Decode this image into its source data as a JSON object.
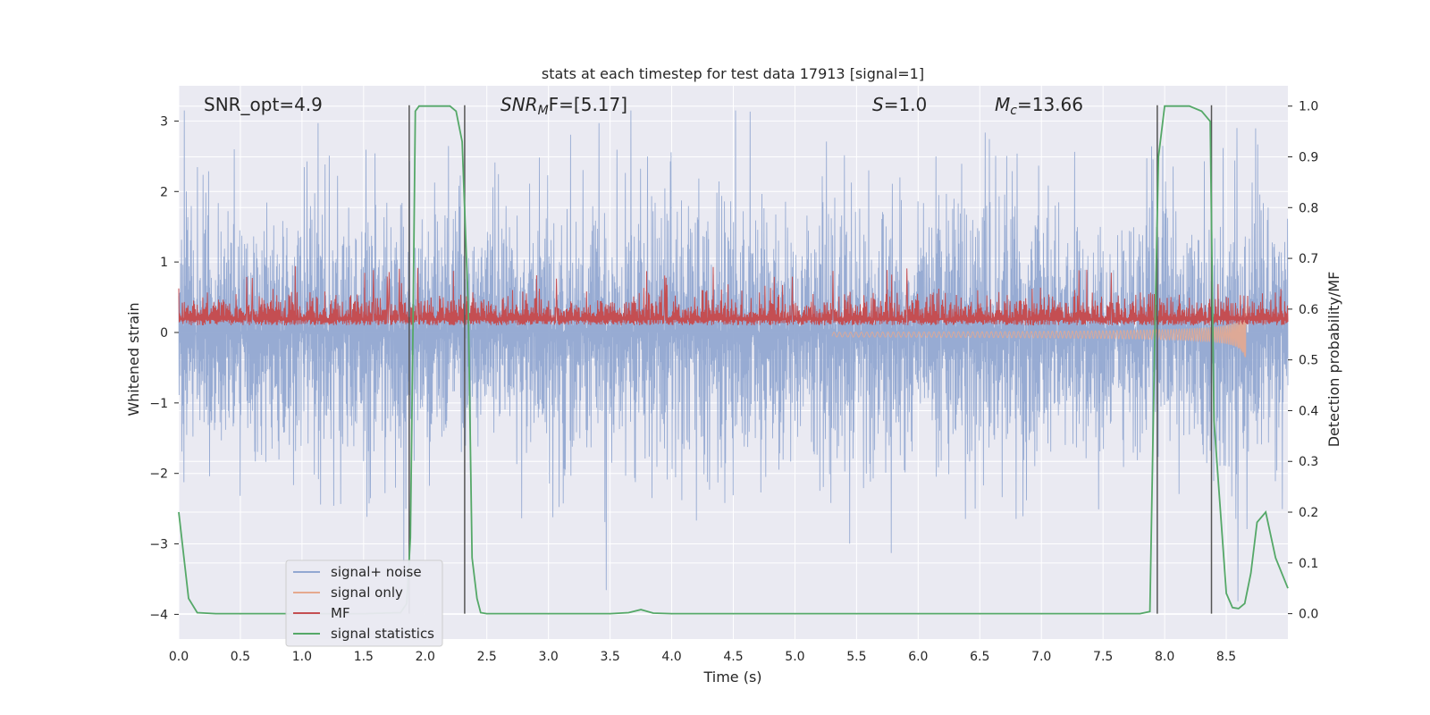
{
  "chart_data": {
    "type": "line",
    "title": "stats at each timestep for test data 17913 [signal=1]",
    "xlabel": "Time (s)",
    "ylabel": "Whitened strain",
    "ylabel_right": "Detection probability/MF",
    "xlim": [
      0.0,
      9.0
    ],
    "ylim": [
      -4.35,
      3.5
    ],
    "ylim_right": [
      -0.05,
      1.04
    ],
    "x_ticks": [
      "0.0",
      "0.5",
      "1.0",
      "1.5",
      "2.0",
      "2.5",
      "3.0",
      "3.5",
      "4.0",
      "4.5",
      "5.0",
      "5.5",
      "6.0",
      "6.5",
      "7.0",
      "7.5",
      "8.0",
      "8.5"
    ],
    "y_ticks": [
      "3",
      "2",
      "1",
      "0",
      "−1",
      "−2",
      "−3",
      "−4"
    ],
    "y_right_ticks": [
      "1.0",
      "0.9",
      "0.8",
      "0.7",
      "0.6",
      "0.5",
      "0.4",
      "0.3",
      "0.2",
      "0.1",
      "0.0"
    ],
    "grid": true,
    "legend_position": "lower-left",
    "annotations": {
      "snr_opt": "SNR_opt=4.9",
      "snr_mf_prefix": "SNR",
      "snr_mf_sub": "M",
      "snr_mf_suffix": "F=[5.17]",
      "s_var": "S",
      "s_value": "=1.0",
      "mc_var": "M",
      "mc_sub": "c",
      "mc_value": "=13.66"
    },
    "series": [
      {
        "name": "signal+ noise",
        "color": "#92a8d1",
        "description": "whitened noisy strain, roughly -3 to 3"
      },
      {
        "name": "signal only",
        "color": "#e6a98f",
        "description": "chirp signal, grows near merger at ~8.65 s"
      },
      {
        "name": "MF",
        "color": "#c44e52",
        "description": "matched filter output, around 0.2-0.6"
      },
      {
        "name": "signal statistics",
        "color": "#55a868",
        "x": [
          0.0,
          0.08,
          0.15,
          0.3,
          0.5,
          1.0,
          1.5,
          1.8,
          1.85,
          1.88,
          1.9,
          1.92,
          1.95,
          2.0,
          2.1,
          2.2,
          2.25,
          2.3,
          2.35,
          2.38,
          2.42,
          2.45,
          2.5,
          3.0,
          3.5,
          3.65,
          3.75,
          3.85,
          4.0,
          5.0,
          6.0,
          7.0,
          7.5,
          7.8,
          7.88,
          7.92,
          7.95,
          8.0,
          8.1,
          8.2,
          8.3,
          8.37,
          8.4,
          8.5,
          8.55,
          8.6,
          8.65,
          8.7,
          8.75,
          8.82,
          8.9,
          9.0
        ],
        "y": [
          0.2,
          0.03,
          0.002,
          0.0,
          0.0,
          0.0,
          0.0,
          0.002,
          0.02,
          0.15,
          0.55,
          0.99,
          1.0,
          1.0,
          1.0,
          1.0,
          0.99,
          0.93,
          0.6,
          0.11,
          0.03,
          0.002,
          0.0,
          0.0,
          0.0,
          0.002,
          0.008,
          0.001,
          0.0,
          0.0,
          0.0,
          0.0,
          0.0,
          0.0,
          0.004,
          0.55,
          0.9,
          1.0,
          1.0,
          1.0,
          0.99,
          0.97,
          0.38,
          0.04,
          0.012,
          0.01,
          0.02,
          0.08,
          0.18,
          0.2,
          0.11,
          0.05
        ]
      }
    ],
    "vertical_lines_x": [
      1.87,
      2.32,
      7.94,
      8.38
    ]
  }
}
